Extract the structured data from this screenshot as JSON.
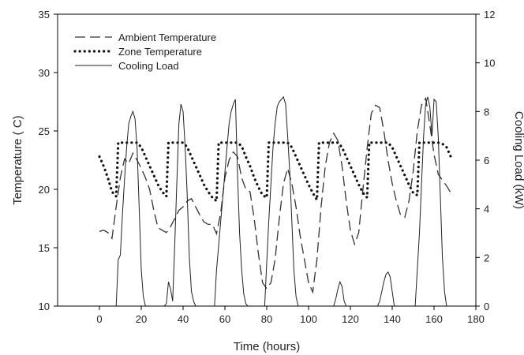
{
  "chart_data": {
    "type": "line",
    "xlabel": "Time (hours)",
    "ylabel_left": "Temperature ( C)",
    "ylabel_right": "Cooling Load (kW)",
    "xlim": [
      -20,
      180
    ],
    "xticks": [
      0,
      20,
      40,
      60,
      80,
      100,
      120,
      140,
      160,
      180
    ],
    "ylim_left": [
      10,
      35
    ],
    "yticks_left": [
      10,
      15,
      20,
      25,
      30,
      35
    ],
    "ylim_right": [
      0,
      12
    ],
    "yticks_right": [
      0,
      2,
      4,
      6,
      8,
      10,
      12
    ],
    "legend_position": "top-left",
    "series": [
      {
        "name": "Ambient Temperature",
        "axis": "left",
        "style": "dashed",
        "x": [
          0,
          2,
          4,
          6,
          8,
          10,
          12,
          14,
          16,
          18,
          20,
          22,
          24,
          26,
          28,
          30,
          32,
          34,
          36,
          38,
          40,
          42,
          44,
          46,
          48,
          50,
          52,
          54,
          56,
          58,
          60,
          62,
          64,
          66,
          68,
          70,
          72,
          74,
          76,
          78,
          80,
          82,
          84,
          86,
          88,
          90,
          92,
          94,
          96,
          98,
          100,
          102,
          104,
          106,
          108,
          110,
          112,
          114,
          116,
          118,
          120,
          122,
          124,
          126,
          128,
          130,
          132,
          134,
          136,
          138,
          140,
          142,
          144,
          146,
          148,
          150,
          152,
          154,
          156,
          158,
          160,
          162,
          164,
          166,
          168
        ],
        "values": [
          16.4,
          16.5,
          16.3,
          15.8,
          18.5,
          21.0,
          22.6,
          22.2,
          23.1,
          22.5,
          21.8,
          21.0,
          20.0,
          18.2,
          16.7,
          16.5,
          16.3,
          16.8,
          17.5,
          18.2,
          18.5,
          19.0,
          19.2,
          18.5,
          17.8,
          17.2,
          17.0,
          17.0,
          16.2,
          18.0,
          21.0,
          22.5,
          23.2,
          22.8,
          21.0,
          20.0,
          19.8,
          17.5,
          14.5,
          12.0,
          11.5,
          12.0,
          14.0,
          17.5,
          20.5,
          21.8,
          20.5,
          18.5,
          16.0,
          14.0,
          12.0,
          11.2,
          14.0,
          18.5,
          22.0,
          24.0,
          24.8,
          24.2,
          22.0,
          19.0,
          16.5,
          15.3,
          16.3,
          20.0,
          23.5,
          26.5,
          27.2,
          27.0,
          25.0,
          22.5,
          20.5,
          19.0,
          17.8,
          17.6,
          19.0,
          21.5,
          25.0,
          27.2,
          27.8,
          25.5,
          23.0,
          21.3,
          20.8,
          20.3,
          19.7
        ]
      },
      {
        "name": "Zone Temperature",
        "axis": "left",
        "style": "dotted",
        "x": [
          0,
          2,
          4,
          6,
          8,
          9,
          12,
          16,
          18,
          20,
          22,
          24,
          26,
          28,
          30,
          32,
          33,
          36,
          40,
          42,
          44,
          46,
          48,
          50,
          52,
          54,
          56,
          57,
          60,
          64,
          66,
          68,
          70,
          72,
          74,
          76,
          78,
          80,
          81,
          84,
          88,
          90,
          92,
          94,
          96,
          98,
          100,
          102,
          104,
          105,
          108,
          112,
          114,
          116,
          118,
          120,
          122,
          124,
          126,
          128,
          129,
          132,
          136,
          138,
          140,
          142,
          144,
          146,
          148,
          150,
          152,
          153,
          156,
          160,
          162,
          164,
          166,
          168
        ],
        "values": [
          22.8,
          22.0,
          21.0,
          19.8,
          19.4,
          24.0,
          24.0,
          24.0,
          24.0,
          23.6,
          22.8,
          22.0,
          21.2,
          20.4,
          19.8,
          19.4,
          24.0,
          24.0,
          24.0,
          23.6,
          22.8,
          22.0,
          21.2,
          20.4,
          19.8,
          19.3,
          19.0,
          24.0,
          24.0,
          24.0,
          24.0,
          23.7,
          22.8,
          22.0,
          21.0,
          20.2,
          19.5,
          19.3,
          24.0,
          24.0,
          24.0,
          24.0,
          23.6,
          22.8,
          22.0,
          21.2,
          20.4,
          19.7,
          19.1,
          24.0,
          24.0,
          24.0,
          24.0,
          23.6,
          22.8,
          22.0,
          21.2,
          20.4,
          19.7,
          19.3,
          24.0,
          24.0,
          24.0,
          24.0,
          23.6,
          22.8,
          22.0,
          21.2,
          20.4,
          19.7,
          19.5,
          24.0,
          24.0,
          24.0,
          24.0,
          23.9,
          23.6,
          22.8
        ]
      },
      {
        "name": "Cooling Load",
        "axis": "right",
        "style": "solid",
        "x": [
          8,
          9,
          10,
          11,
          12,
          13,
          14,
          15,
          16,
          17,
          18,
          19,
          20,
          21,
          22,
          31,
          32,
          33,
          34,
          35,
          36,
          37,
          38,
          39,
          40,
          41,
          42,
          43,
          44,
          45,
          46,
          55,
          56,
          57,
          58,
          59,
          60,
          61,
          62,
          63,
          64,
          65,
          66,
          67,
          68,
          69,
          70,
          71,
          79,
          80,
          81,
          82,
          83,
          84,
          85,
          86,
          87,
          88,
          89,
          90,
          91,
          92,
          93,
          94,
          95,
          112,
          113,
          114,
          115,
          116,
          117,
          118,
          133,
          134,
          135,
          136,
          137,
          138,
          139,
          140,
          141,
          151,
          152,
          153,
          154,
          155,
          156,
          157,
          158,
          159,
          160,
          161,
          162,
          163,
          164,
          165,
          166
        ],
        "values": [
          0,
          1.9,
          2.1,
          3.8,
          5.2,
          6.5,
          7.5,
          7.8,
          8.0,
          7.7,
          6.5,
          4.0,
          1.5,
          0.4,
          0,
          0,
          0.1,
          1.0,
          0.7,
          0.2,
          2.5,
          5.0,
          7.5,
          8.3,
          8.0,
          6.5,
          4.5,
          2.0,
          0.6,
          0.2,
          0,
          0,
          1.5,
          2.5,
          3.5,
          4.5,
          5.5,
          6.5,
          7.5,
          8.0,
          8.3,
          8.5,
          5.5,
          3.0,
          1.5,
          0.5,
          0.1,
          0,
          0,
          1.8,
          3.5,
          5.0,
          6.5,
          7.5,
          8.2,
          8.4,
          8.5,
          8.6,
          8.3,
          7.0,
          5.5,
          3.5,
          1.5,
          0.4,
          0,
          0,
          0.3,
          0.7,
          1.0,
          0.8,
          0.2,
          0,
          0,
          0.2,
          0.6,
          1.0,
          1.3,
          1.4,
          1.2,
          0.6,
          0,
          0,
          1.5,
          3.0,
          5.0,
          7.0,
          8.3,
          8.6,
          8.2,
          7.0,
          8.5,
          8.4,
          7.0,
          4.5,
          2.0,
          0.6,
          0
        ]
      }
    ]
  }
}
